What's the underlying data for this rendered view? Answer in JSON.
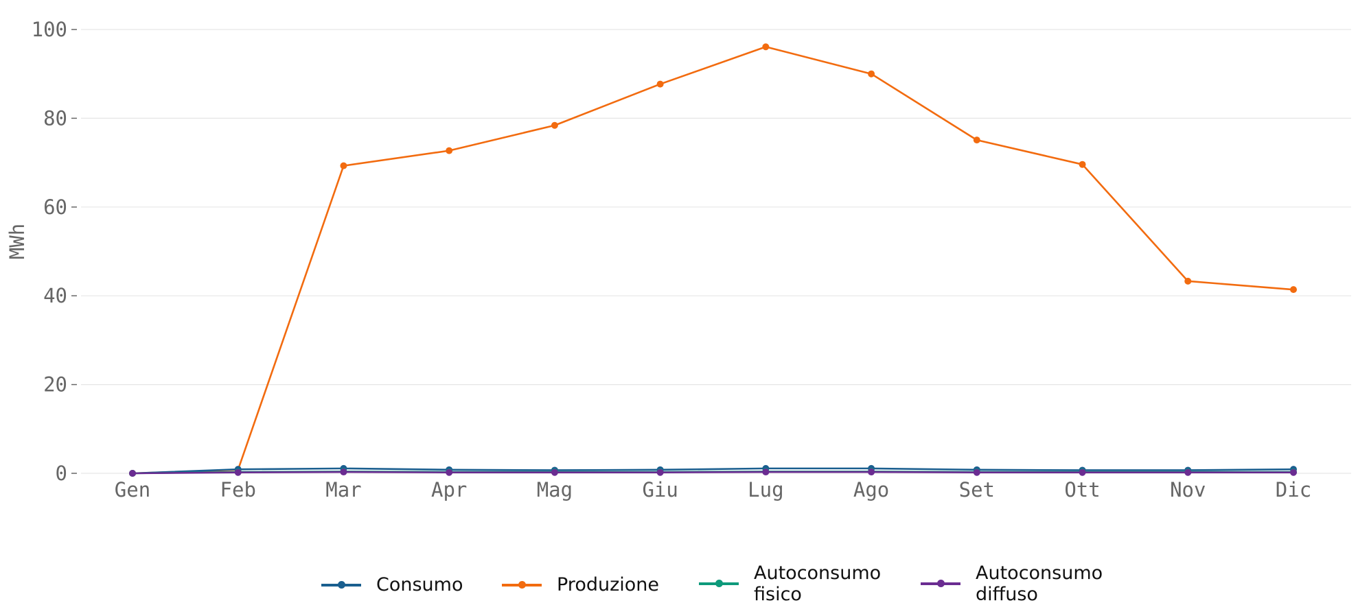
{
  "chart_data": {
    "type": "line",
    "ylabel": "MWh",
    "xlabel": "",
    "categories": [
      "Gen",
      "Feb",
      "Mar",
      "Apr",
      "Mag",
      "Giu",
      "Lug",
      "Ago",
      "Set",
      "Ott",
      "Nov",
      "Dic"
    ],
    "ylim": [
      0,
      100
    ],
    "yticks": [
      0,
      20,
      40,
      60,
      80,
      100
    ],
    "grid": "horizontal",
    "legend_position": "bottom",
    "series": [
      {
        "name": "Consumo",
        "color": "#1a5f8f",
        "values": [
          0,
          0.9,
          1.1,
          0.8,
          0.7,
          0.8,
          1.1,
          1.1,
          0.8,
          0.7,
          0.7,
          0.9
        ]
      },
      {
        "name": "Produzione",
        "color": "#f26b0f",
        "values": [
          0,
          0.8,
          69.3,
          72.7,
          78.4,
          87.7,
          96.1,
          90.0,
          75.1,
          69.6,
          43.3,
          41.4
        ]
      },
      {
        "name": "Autoconsumo fisico",
        "color": "#0e9a7b",
        "values": [
          0,
          0.3,
          0.4,
          0.3,
          0.3,
          0.3,
          0.4,
          0.4,
          0.3,
          0.3,
          0.3,
          0.3
        ]
      },
      {
        "name": "Autoconsumo diffuso",
        "color": "#6a2c91",
        "values": [
          0,
          0.2,
          0.3,
          0.2,
          0.2,
          0.2,
          0.3,
          0.3,
          0.2,
          0.2,
          0.2,
          0.2
        ]
      }
    ],
    "legend_labels": [
      "Consumo",
      "Produzione",
      "Autoconsumo\nfisico",
      "Autoconsumo\ndiffuso"
    ]
  }
}
